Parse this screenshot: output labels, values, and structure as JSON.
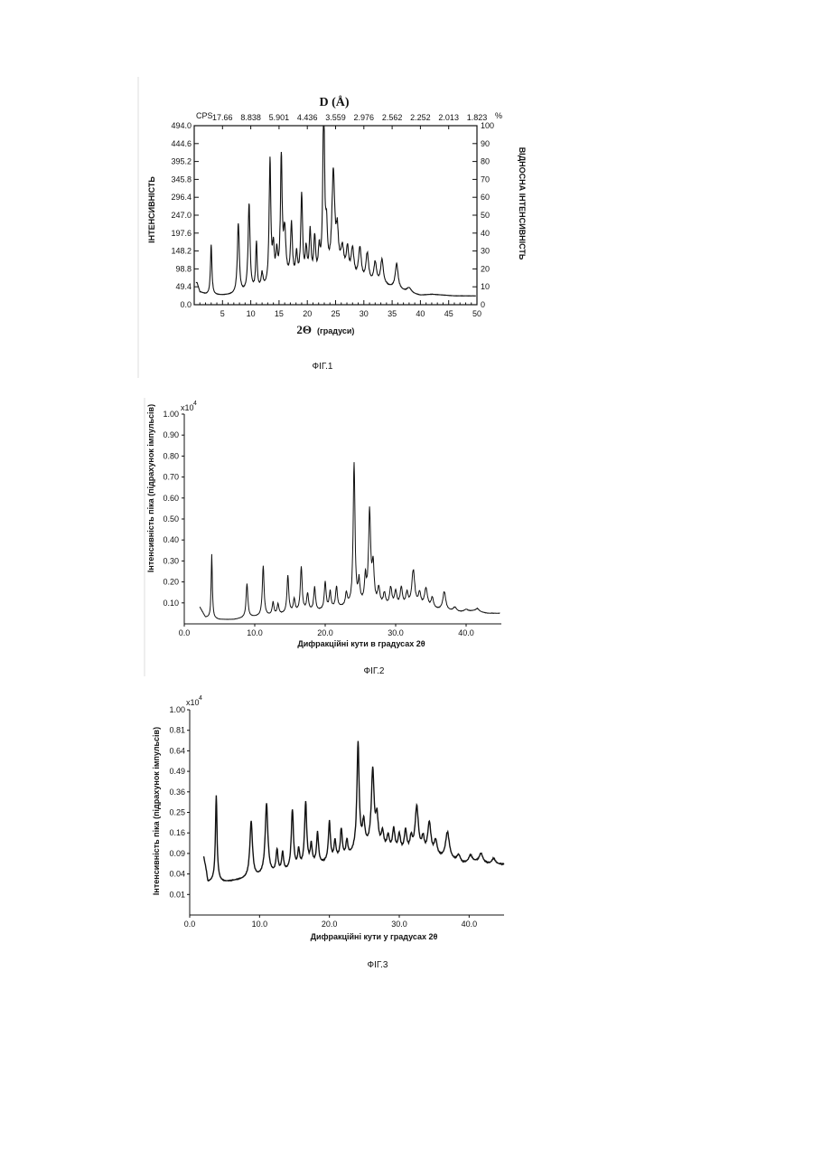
{
  "chart_data": [
    {
      "type": "line",
      "figure_label": "ФІГ.1",
      "title": "D (Å)",
      "xlabel_symbol": "2Θ",
      "xlabel_unit": "(градуси)",
      "ylabel": "ІНТЕНСИВНІСТЬ",
      "y2label": "ВІДНОСНА ІНТЕНСИВНІСТЬ",
      "y_unit_label": "CPS",
      "y2_unit_label": "%",
      "xlim": [
        0,
        50
      ],
      "ylim": [
        0,
        494.0
      ],
      "x_ticks": [
        "5",
        "10",
        "15",
        "20",
        "25",
        "30",
        "35",
        "40",
        "45",
        "50"
      ],
      "y_ticks": [
        "0.0",
        "49.4",
        "98.8",
        "148.2",
        "197.6",
        "247.0",
        "296.4",
        "345.8",
        "395.2",
        "444.6",
        "494.0"
      ],
      "y2_ticks": [
        "0",
        "10",
        "20",
        "30",
        "40",
        "50",
        "60",
        "70",
        "80",
        "90",
        "100"
      ],
      "top_ticks": [
        "17.66",
        "8.838",
        "5.901",
        "4.436",
        "3.559",
        "2.976",
        "2.562",
        "2.252",
        "2.013",
        "1.823"
      ],
      "baseline": [
        [
          0.5,
          60
        ],
        [
          1,
          35
        ],
        [
          2,
          28
        ],
        [
          3,
          26
        ],
        [
          5,
          25
        ],
        [
          7,
          26
        ],
        [
          9,
          30
        ],
        [
          11,
          35
        ],
        [
          13,
          42
        ],
        [
          15,
          55
        ],
        [
          17,
          62
        ],
        [
          19,
          55
        ],
        [
          21,
          60
        ],
        [
          23,
          68
        ],
        [
          25,
          75
        ],
        [
          26,
          85
        ],
        [
          28,
          65
        ],
        [
          30,
          55
        ],
        [
          32,
          50
        ],
        [
          34,
          48
        ],
        [
          36,
          40
        ],
        [
          38,
          30
        ],
        [
          40,
          25
        ],
        [
          42,
          28
        ],
        [
          44,
          26
        ],
        [
          46,
          24
        ],
        [
          48,
          24
        ],
        [
          50,
          24
        ]
      ],
      "peaks": [
        [
          3.0,
          140,
          0.15
        ],
        [
          7.8,
          195,
          0.2
        ],
        [
          9.7,
          245,
          0.2
        ],
        [
          11.0,
          130,
          0.15
        ],
        [
          12.0,
          40,
          0.2
        ],
        [
          13.4,
          345,
          0.18
        ],
        [
          14.0,
          90,
          0.2
        ],
        [
          14.6,
          75,
          0.2
        ],
        [
          15.4,
          340,
          0.18
        ],
        [
          16.0,
          130,
          0.25
        ],
        [
          17.2,
          150,
          0.2
        ],
        [
          18.1,
          70,
          0.2
        ],
        [
          19.0,
          235,
          0.2
        ],
        [
          19.8,
          80,
          0.2
        ],
        [
          20.5,
          130,
          0.2
        ],
        [
          21.3,
          110,
          0.2
        ],
        [
          22.1,
          70,
          0.2
        ],
        [
          22.9,
          494,
          0.18
        ],
        [
          23.4,
          110,
          0.2
        ],
        [
          24.6,
          280,
          0.3
        ],
        [
          25.3,
          100,
          0.25
        ],
        [
          26.2,
          60,
          0.3
        ],
        [
          27.1,
          70,
          0.25
        ],
        [
          28.0,
          80,
          0.3
        ],
        [
          29.3,
          90,
          0.3
        ],
        [
          30.6,
          80,
          0.3
        ],
        [
          32.0,
          60,
          0.3
        ],
        [
          33.2,
          70,
          0.3
        ],
        [
          35.8,
          70,
          0.3
        ],
        [
          38.0,
          15,
          0.5
        ]
      ]
    },
    {
      "type": "line",
      "figure_label": "ФІГ.2",
      "xlabel": "Дифракційні кути в градусах 2θ",
      "ylabel": "Інтенсивність піка (підрахунок імпульсів)",
      "y_multiplier": "x10",
      "y_multiplier_exp": "4",
      "xlim": [
        0,
        45
      ],
      "ylim": [
        0,
        1.0
      ],
      "x_ticks": [
        "0.0",
        "10.0",
        "20.0",
        "30.0",
        "40.0"
      ],
      "x_tick_values": [
        0,
        10,
        20,
        30,
        40
      ],
      "y_ticks": [
        "1.00",
        "0.90",
        "0.80",
        "0.70",
        "0.60",
        "0.50",
        "0.40",
        "0.30",
        "0.20",
        "0.10"
      ],
      "y_tick_values": [
        1.0,
        0.9,
        0.8,
        0.7,
        0.6,
        0.5,
        0.4,
        0.3,
        0.2,
        0.1
      ],
      "baseline": [
        [
          2.2,
          0.08
        ],
        [
          3,
          0.03
        ],
        [
          5,
          0.02
        ],
        [
          7,
          0.02
        ],
        [
          9,
          0.03
        ],
        [
          11,
          0.035
        ],
        [
          13,
          0.04
        ],
        [
          15,
          0.05
        ],
        [
          17,
          0.06
        ],
        [
          19,
          0.06
        ],
        [
          21,
          0.07
        ],
        [
          23,
          0.08
        ],
        [
          25,
          0.09
        ],
        [
          27,
          0.08
        ],
        [
          29,
          0.075
        ],
        [
          31,
          0.075
        ],
        [
          33,
          0.08
        ],
        [
          35,
          0.07
        ],
        [
          37,
          0.06
        ],
        [
          39,
          0.055
        ],
        [
          41,
          0.06
        ],
        [
          43,
          0.05
        ],
        [
          44.8,
          0.05
        ]
      ],
      "peaks": [
        [
          3.9,
          0.3,
          0.1
        ],
        [
          8.9,
          0.16,
          0.15
        ],
        [
          11.2,
          0.24,
          0.15
        ],
        [
          12.6,
          0.06,
          0.15
        ],
        [
          13.3,
          0.05,
          0.15
        ],
        [
          14.7,
          0.18,
          0.15
        ],
        [
          15.6,
          0.06,
          0.15
        ],
        [
          16.6,
          0.21,
          0.15
        ],
        [
          17.5,
          0.08,
          0.15
        ],
        [
          18.5,
          0.11,
          0.15
        ],
        [
          20.0,
          0.13,
          0.15
        ],
        [
          20.7,
          0.08,
          0.15
        ],
        [
          21.6,
          0.1,
          0.15
        ],
        [
          23.0,
          0.06,
          0.15
        ],
        [
          24.1,
          0.68,
          0.15
        ],
        [
          24.8,
          0.1,
          0.15
        ],
        [
          25.7,
          0.12,
          0.15
        ],
        [
          26.3,
          0.44,
          0.18
        ],
        [
          26.8,
          0.18,
          0.18
        ],
        [
          27.6,
          0.08,
          0.2
        ],
        [
          28.4,
          0.06,
          0.2
        ],
        [
          29.3,
          0.09,
          0.2
        ],
        [
          30.0,
          0.07,
          0.2
        ],
        [
          30.8,
          0.09,
          0.2
        ],
        [
          31.6,
          0.06,
          0.2
        ],
        [
          32.5,
          0.17,
          0.25
        ],
        [
          33.4,
          0.06,
          0.2
        ],
        [
          34.3,
          0.09,
          0.25
        ],
        [
          35.2,
          0.05,
          0.2
        ],
        [
          36.9,
          0.09,
          0.25
        ],
        [
          38.4,
          0.02,
          0.3
        ],
        [
          40.0,
          0.01,
          0.3
        ],
        [
          41.6,
          0.015,
          0.3
        ]
      ]
    },
    {
      "type": "line",
      "figure_label": "ФІГ.3",
      "xlabel": "Дифракційні кути у градусах 2θ",
      "ylabel": "Інтенсивність піка (підрахунок імпульсів)",
      "y_multiplier": "x10",
      "y_multiplier_exp": "4",
      "xlim": [
        0,
        45
      ],
      "ylim": [
        0,
        1.0
      ],
      "y_scale": "sqrt",
      "x_ticks": [
        "0.0",
        "10.0",
        "20.0",
        "30.0",
        "40.0"
      ],
      "x_tick_values": [
        0,
        10,
        20,
        30,
        40
      ],
      "y_ticks": [
        "1.00",
        "0.81",
        "0.64",
        "0.49",
        "0.36",
        "0.25",
        "0.16",
        "0.09",
        "0.04",
        "0.01"
      ],
      "y_tick_values": [
        1.0,
        0.81,
        0.64,
        0.49,
        0.36,
        0.25,
        0.16,
        0.09,
        0.04,
        0.01
      ],
      "baseline": [
        [
          2.0,
          0.08
        ],
        [
          2.6,
          0.025
        ],
        [
          3.5,
          0.025
        ],
        [
          5,
          0.025
        ],
        [
          7,
          0.028
        ],
        [
          9,
          0.03
        ],
        [
          11,
          0.035
        ],
        [
          13,
          0.04
        ],
        [
          15,
          0.045
        ],
        [
          17,
          0.055
        ],
        [
          19,
          0.06
        ],
        [
          21,
          0.07
        ],
        [
          23,
          0.08
        ],
        [
          25,
          0.1
        ],
        [
          27,
          0.1
        ],
        [
          29,
          0.09
        ],
        [
          31,
          0.085
        ],
        [
          33,
          0.085
        ],
        [
          35,
          0.075
        ],
        [
          37,
          0.07
        ],
        [
          39,
          0.06
        ],
        [
          41,
          0.065
        ],
        [
          43,
          0.06
        ],
        [
          45,
          0.06
        ]
      ],
      "peaks": [
        [
          3.8,
          0.32,
          0.1
        ],
        [
          8.8,
          0.18,
          0.18
        ],
        [
          11.0,
          0.26,
          0.18
        ],
        [
          12.5,
          0.06,
          0.15
        ],
        [
          13.3,
          0.05,
          0.15
        ],
        [
          14.7,
          0.22,
          0.15
        ],
        [
          15.6,
          0.05,
          0.15
        ],
        [
          16.6,
          0.25,
          0.15
        ],
        [
          17.4,
          0.06,
          0.15
        ],
        [
          18.3,
          0.1,
          0.15
        ],
        [
          20.0,
          0.14,
          0.15
        ],
        [
          20.8,
          0.06,
          0.15
        ],
        [
          21.7,
          0.1,
          0.15
        ],
        [
          22.5,
          0.05,
          0.15
        ],
        [
          24.1,
          0.62,
          0.15
        ],
        [
          24.9,
          0.1,
          0.2
        ],
        [
          26.2,
          0.4,
          0.2
        ],
        [
          26.8,
          0.12,
          0.2
        ],
        [
          27.6,
          0.06,
          0.2
        ],
        [
          28.4,
          0.05,
          0.2
        ],
        [
          29.2,
          0.08,
          0.2
        ],
        [
          30.0,
          0.06,
          0.2
        ],
        [
          30.9,
          0.08,
          0.2
        ],
        [
          31.7,
          0.05,
          0.2
        ],
        [
          32.5,
          0.19,
          0.25
        ],
        [
          33.4,
          0.05,
          0.2
        ],
        [
          34.3,
          0.12,
          0.25
        ],
        [
          35.2,
          0.05,
          0.25
        ],
        [
          36.9,
          0.09,
          0.3
        ],
        [
          38.5,
          0.02,
          0.3
        ],
        [
          40.2,
          0.02,
          0.3
        ],
        [
          41.7,
          0.025,
          0.3
        ],
        [
          43.5,
          0.015,
          0.3
        ]
      ]
    }
  ]
}
